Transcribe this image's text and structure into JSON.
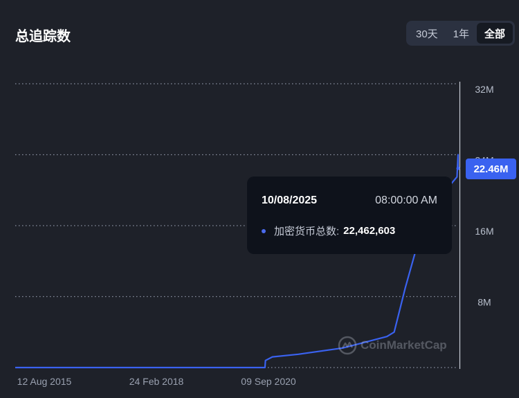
{
  "header": {
    "title": "总追踪数"
  },
  "range_tabs": [
    {
      "label": "30天",
      "active": false
    },
    {
      "label": "1年",
      "active": false
    },
    {
      "label": "全部",
      "active": true
    }
  ],
  "tooltip": {
    "date": "10/08/2025",
    "time": "08:00:00 AM",
    "series_label": "加密货币总数:",
    "value": "22,462,603"
  },
  "current_value_tag": "22.46M",
  "watermark": "CoinMarketCap",
  "colors": {
    "background": "#1e2129",
    "line": "#3a62f0",
    "grid": "#8c93a3",
    "tooltip_bg": "#0e121b",
    "tag_bg": "#3a62f0"
  },
  "chart_data": {
    "type": "line",
    "title": "总追踪数",
    "xlabel": "",
    "ylabel": "",
    "x_tick_labels": [
      "12 Aug 2015",
      "24 Feb 2018",
      "09 Sep 2020"
    ],
    "y_tick_labels": [
      "32M",
      "24M",
      "16M",
      "8M"
    ],
    "ylim": [
      0,
      32000000
    ],
    "grid": "horizontal dotted",
    "series": [
      {
        "values": [
          {
            "x": "2015-08-12",
            "y": 0
          },
          {
            "x": "2016-08-01",
            "y": 0
          },
          {
            "x": "2017-08-01",
            "y": 0
          },
          {
            "x": "2018-08-01",
            "y": 0
          },
          {
            "x": "2019-08-01",
            "y": 0
          },
          {
            "x": "2020-08-01",
            "y": 0
          },
          {
            "x": "2021-03-01",
            "y": 0
          },
          {
            "x": "2021-04-01",
            "y": 0
          },
          {
            "x": "2021-04-05",
            "y": 800000
          },
          {
            "x": "2021-06-01",
            "y": 1200000
          },
          {
            "x": "2022-01-01",
            "y": 1500000
          },
          {
            "x": "2023-01-01",
            "y": 2200000
          },
          {
            "x": "2024-01-01",
            "y": 3500000
          },
          {
            "x": "2024-03-01",
            "y": 4000000
          },
          {
            "x": "2024-06-01",
            "y": 9000000
          },
          {
            "x": "2024-09-01",
            "y": 13500000
          },
          {
            "x": "2025-01-01",
            "y": 17000000
          },
          {
            "x": "2025-04-01",
            "y": 19500000
          },
          {
            "x": "2025-07-01",
            "y": 21000000
          },
          {
            "x": "2025-08-01",
            "y": 21500000
          },
          {
            "x": "2025-08-10",
            "y": 24000000
          },
          {
            "x": "2025-08-10",
            "y": 22462603
          }
        ]
      }
    ]
  }
}
